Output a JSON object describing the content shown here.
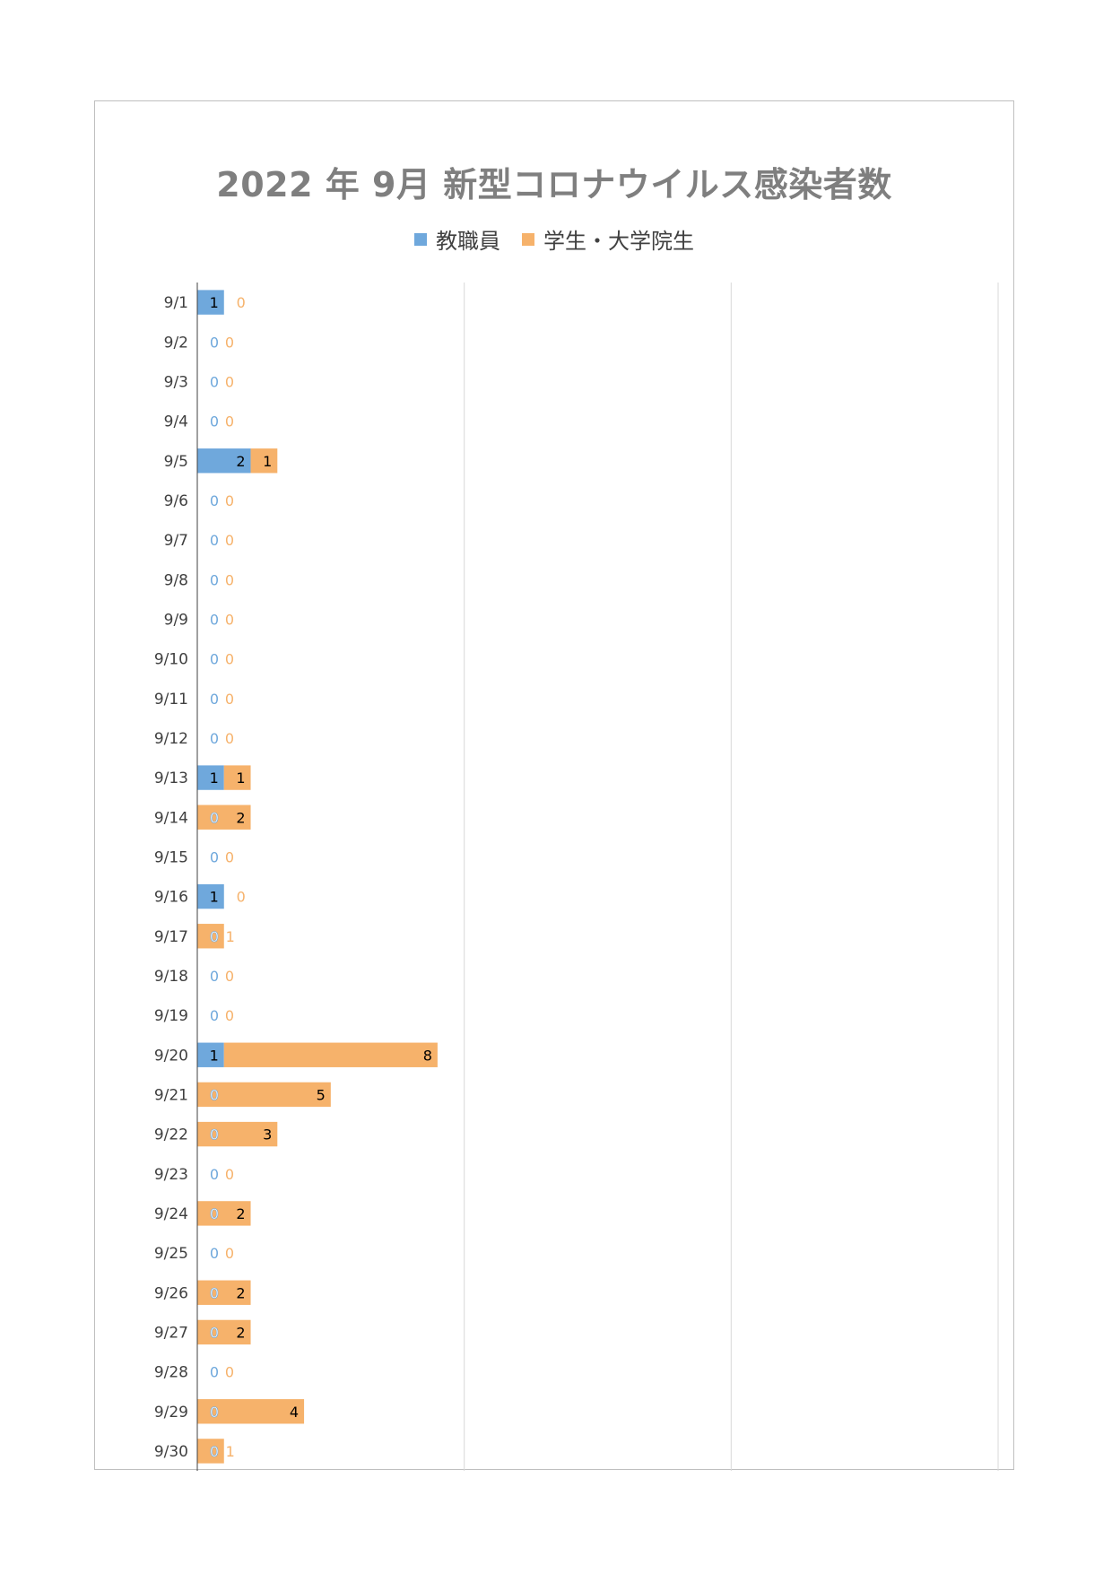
{
  "chart_data": {
    "type": "bar",
    "orientation": "horizontal",
    "stacked": true,
    "title": "2022 年 9月 新型コロナウイルス感染者数",
    "legend_position": "top",
    "grid": true,
    "xlim": [
      0,
      30
    ],
    "categories": [
      "9/1",
      "9/2",
      "9/3",
      "9/4",
      "9/5",
      "9/6",
      "9/7",
      "9/8",
      "9/9",
      "9/10",
      "9/11",
      "9/12",
      "9/13",
      "9/14",
      "9/15",
      "9/16",
      "9/17",
      "9/18",
      "9/19",
      "9/20",
      "9/21",
      "9/22",
      "9/23",
      "9/24",
      "9/25",
      "9/26",
      "9/27",
      "9/28",
      "9/29",
      "9/30"
    ],
    "series": [
      {
        "name": "教職員",
        "color": "#6fa8dc",
        "values": [
          1,
          0,
          0,
          0,
          2,
          0,
          0,
          0,
          0,
          0,
          0,
          0,
          1,
          0,
          0,
          1,
          0,
          0,
          0,
          1,
          0,
          0,
          0,
          0,
          0,
          0,
          0,
          0,
          0,
          0
        ]
      },
      {
        "name": "学生・大学院生",
        "color": "#f6b26b",
        "values": [
          0,
          0,
          0,
          0,
          1,
          0,
          0,
          0,
          0,
          0,
          0,
          0,
          1,
          2,
          0,
          0,
          1,
          0,
          0,
          8,
          5,
          3,
          0,
          2,
          0,
          2,
          2,
          0,
          4,
          1
        ]
      }
    ]
  }
}
